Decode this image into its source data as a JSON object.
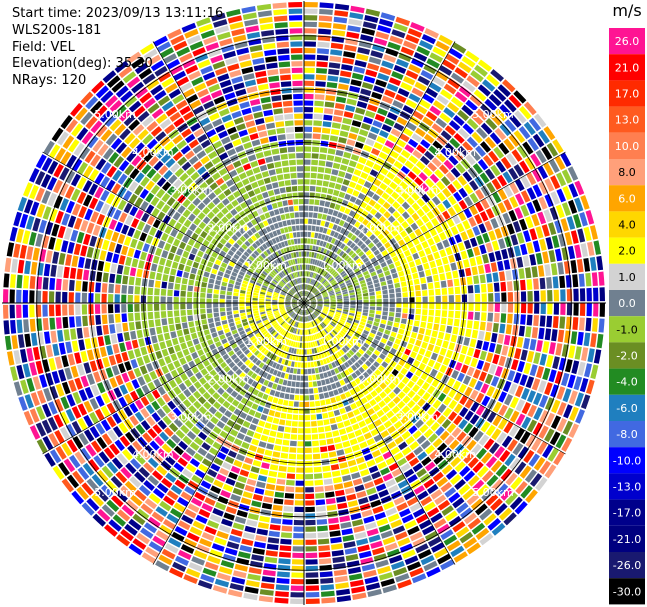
{
  "info": {
    "start_time": "Start time: 2023/09/13 13:11:16",
    "instrument": "WLS200s-181",
    "field": "Field: VEL",
    "elevation": "Elevation(deg): 35.30",
    "nrays": "NRays: 120"
  },
  "colorbar": {
    "unit": "m/s",
    "levels": [
      "26.0",
      "21.0",
      "17.0",
      "13.0",
      "10.0",
      "8.0",
      "6.0",
      "4.0",
      "2.0",
      "1.0",
      "0.0",
      "-1.0",
      "-2.0",
      "-4.0",
      "-6.0",
      "-8.0",
      "-10.0",
      "-13.0",
      "-17.0",
      "-21.0",
      "-26.0",
      "-30.0"
    ],
    "colors": [
      "#ff1493",
      "#ff0000",
      "#ff2a00",
      "#ff5a1f",
      "#ff7f50",
      "#ffa07a",
      "#ffa500",
      "#ffd700",
      "#ffff00",
      "#d3d3d3",
      "#708090",
      "#9acd32",
      "#6b8e23",
      "#228b22",
      "#1f7fbf",
      "#4169e1",
      "#0000ff",
      "#0000cd",
      "#00008b",
      "#000080",
      "#191970",
      "#000000"
    ]
  },
  "chart_data": {
    "type": "heatmap",
    "projection": "polar (PPI)",
    "field": "VEL",
    "unit": "m/s",
    "nrays": 120,
    "range_rings_km": [
      1,
      2,
      3,
      4,
      5
    ],
    "ring_labels": [
      "1.00km",
      "2.00km",
      "3.00km",
      "4.00km",
      "5.00km"
    ],
    "pattern_description": "near-range: yellow (1–2 m/s) in lower/right half, olive-green (-1 to -2 m/s) upper/left, gray (~0) band; far-range: noisy mixed colors"
  }
}
